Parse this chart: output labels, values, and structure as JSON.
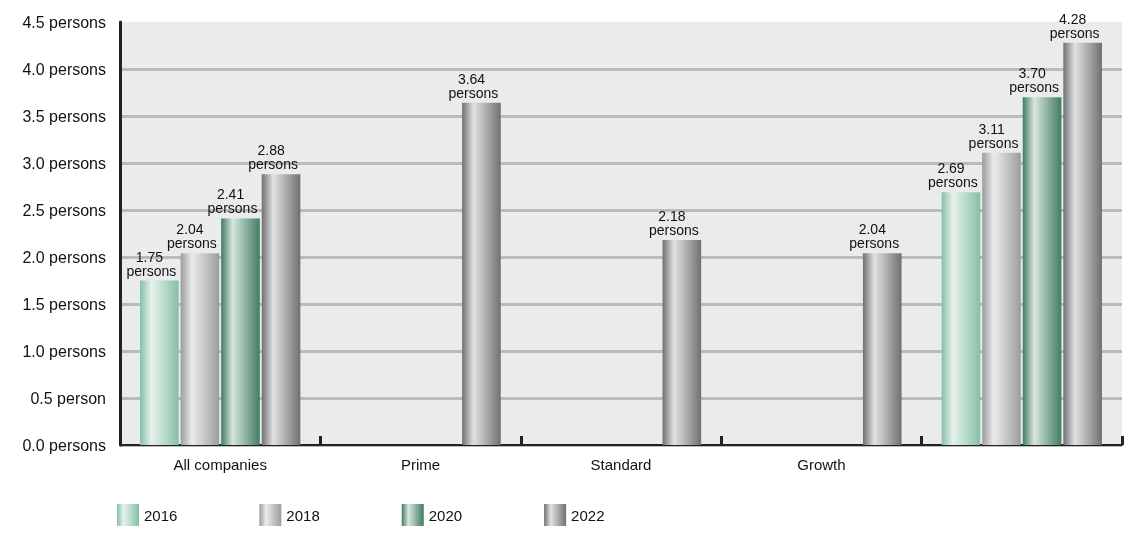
{
  "chart_data": {
    "type": "bar",
    "categories": [
      "All companies",
      "Prime",
      "Standard",
      "Growth",
      null
    ],
    "series": [
      {
        "name": "2016",
        "color": "#86bfa5",
        "values": [
          1.75,
          null,
          null,
          null,
          2.69
        ],
        "value_labels": [
          "1.75 persons",
          null,
          null,
          null,
          "2.69 persons"
        ]
      },
      {
        "name": "2018",
        "color": "#9a9c9e",
        "values": [
          2.04,
          null,
          null,
          null,
          3.11
        ],
        "value_labels": [
          "2.04 persons",
          null,
          null,
          null,
          "3.11 persons"
        ]
      },
      {
        "name": "2020",
        "color": "#3f7d60",
        "values": [
          2.41,
          null,
          null,
          null,
          3.7
        ],
        "value_labels": [
          "2.41 persons",
          null,
          null,
          null,
          "3.70 persons"
        ]
      },
      {
        "name": "2022",
        "color": "#6e7072",
        "values": [
          2.88,
          3.64,
          2.18,
          2.04,
          4.28
        ],
        "value_labels": [
          "2.88 persons",
          "3.64 persons",
          "2.18 persons",
          "2.04 persons",
          "4.28 persons"
        ]
      }
    ],
    "ylim": [
      0,
      4.5
    ],
    "yticks": [
      {
        "value": 0,
        "label": "0.0 persons"
      },
      {
        "value": 0.5,
        "label": "0.5 person"
      },
      {
        "value": 1,
        "label": "1.0 persons"
      },
      {
        "value": 1.5,
        "label": "1.5 persons"
      },
      {
        "value": 2,
        "label": "2.0 persons"
      },
      {
        "value": 2.5,
        "label": "2.5 persons"
      },
      {
        "value": 3,
        "label": "3.0 persons"
      },
      {
        "value": 3.5,
        "label": "3.5 persons"
      },
      {
        "value": 4,
        "label": "4.0 persons"
      },
      {
        "value": 4.5,
        "label": "4.5 persons"
      }
    ],
    "grid": "y",
    "legend": "bottom left"
  }
}
